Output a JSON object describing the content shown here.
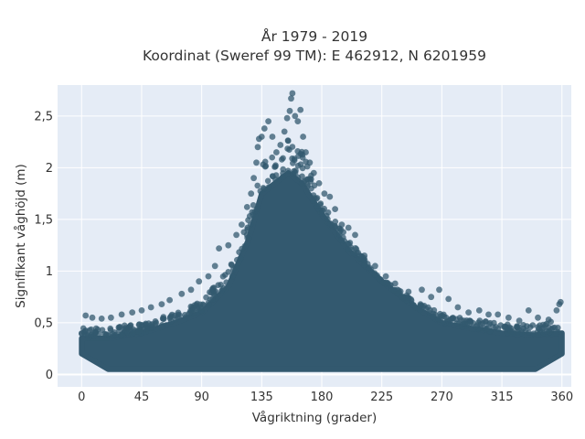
{
  "chart_data": {
    "type": "scatter",
    "title": "År 1979 - 2019",
    "subtitle": "Koordinat (Sweref 99 TM): E 462912, N 6201959",
    "xlabel": "Vågriktning (grader)",
    "ylabel": "Signifikant våghöjd (m)",
    "xlim": [
      -18,
      367
    ],
    "ylim": [
      -0.12,
      2.8
    ],
    "x_ticks": [
      0,
      45,
      90,
      135,
      180,
      225,
      270,
      315,
      360
    ],
    "x_tick_labels": [
      "0",
      "45",
      "90",
      "135",
      "180",
      "225",
      "270",
      "315",
      "360"
    ],
    "y_ticks": [
      0,
      0.5,
      1,
      1.5,
      2,
      2.5
    ],
    "y_tick_labels": [
      "0",
      "0,5",
      "1",
      "1,5",
      "2",
      "2,5"
    ],
    "grid": true,
    "colors": {
      "marker": "#33596f",
      "plot_bg": "#e5ecf6",
      "grid": "#ffffff"
    },
    "envelope": {
      "direction": [
        0,
        20,
        45,
        70,
        90,
        110,
        125,
        135,
        145,
        155,
        165,
        180,
        200,
        225,
        250,
        270,
        290,
        315,
        340,
        360
      ],
      "hs_dense_upper": [
        0.35,
        0.35,
        0.4,
        0.5,
        0.6,
        0.85,
        1.3,
        1.75,
        1.85,
        1.95,
        1.85,
        1.55,
        1.2,
        0.9,
        0.65,
        0.5,
        0.45,
        0.4,
        0.38,
        0.4
      ],
      "hs_max": [
        0.57,
        0.58,
        0.62,
        0.7,
        0.85,
        1.2,
        1.75,
        2.4,
        2.55,
        2.72,
        2.55,
        1.8,
        1.45,
        0.95,
        0.8,
        0.7,
        0.65,
        0.6,
        0.6,
        0.7
      ]
    },
    "points": [
      {
        "x": 3,
        "y": 0.57
      },
      {
        "x": 8,
        "y": 0.55
      },
      {
        "x": 15,
        "y": 0.54
      },
      {
        "x": 22,
        "y": 0.55
      },
      {
        "x": 30,
        "y": 0.58
      },
      {
        "x": 38,
        "y": 0.6
      },
      {
        "x": 45,
        "y": 0.62
      },
      {
        "x": 52,
        "y": 0.65
      },
      {
        "x": 60,
        "y": 0.68
      },
      {
        "x": 66,
        "y": 0.72
      },
      {
        "x": 75,
        "y": 0.78
      },
      {
        "x": 82,
        "y": 0.82
      },
      {
        "x": 88,
        "y": 0.9
      },
      {
        "x": 95,
        "y": 0.95
      },
      {
        "x": 100,
        "y": 1.05
      },
      {
        "x": 103,
        "y": 1.22
      },
      {
        "x": 110,
        "y": 1.25
      },
      {
        "x": 116,
        "y": 1.35
      },
      {
        "x": 120,
        "y": 1.45
      },
      {
        "x": 124,
        "y": 1.62
      },
      {
        "x": 127,
        "y": 1.75
      },
      {
        "x": 129,
        "y": 1.9
      },
      {
        "x": 131,
        "y": 2.05
      },
      {
        "x": 132,
        "y": 2.2
      },
      {
        "x": 133,
        "y": 2.28
      },
      {
        "x": 135,
        "y": 2.3
      },
      {
        "x": 137,
        "y": 2.38
      },
      {
        "x": 140,
        "y": 2.45
      },
      {
        "x": 143,
        "y": 2.3
      },
      {
        "x": 146,
        "y": 2.15
      },
      {
        "x": 149,
        "y": 2.22
      },
      {
        "x": 152,
        "y": 2.35
      },
      {
        "x": 154,
        "y": 2.48
      },
      {
        "x": 156,
        "y": 2.55
      },
      {
        "x": 157,
        "y": 2.67
      },
      {
        "x": 158,
        "y": 2.72
      },
      {
        "x": 160,
        "y": 2.5
      },
      {
        "x": 162,
        "y": 2.45
      },
      {
        "x": 164,
        "y": 2.56
      },
      {
        "x": 166,
        "y": 2.3
      },
      {
        "x": 168,
        "y": 2.15
      },
      {
        "x": 171,
        "y": 2.05
      },
      {
        "x": 174,
        "y": 1.95
      },
      {
        "x": 178,
        "y": 1.85
      },
      {
        "x": 182,
        "y": 1.75
      },
      {
        "x": 186,
        "y": 1.72
      },
      {
        "x": 190,
        "y": 1.6
      },
      {
        "x": 195,
        "y": 1.45
      },
      {
        "x": 200,
        "y": 1.42
      },
      {
        "x": 205,
        "y": 1.35
      },
      {
        "x": 212,
        "y": 1.15
      },
      {
        "x": 220,
        "y": 1.05
      },
      {
        "x": 228,
        "y": 0.95
      },
      {
        "x": 235,
        "y": 0.88
      },
      {
        "x": 245,
        "y": 0.8
      },
      {
        "x": 255,
        "y": 0.82
      },
      {
        "x": 262,
        "y": 0.75
      },
      {
        "x": 268,
        "y": 0.82
      },
      {
        "x": 275,
        "y": 0.73
      },
      {
        "x": 282,
        "y": 0.65
      },
      {
        "x": 290,
        "y": 0.6
      },
      {
        "x": 298,
        "y": 0.62
      },
      {
        "x": 305,
        "y": 0.58
      },
      {
        "x": 312,
        "y": 0.58
      },
      {
        "x": 320,
        "y": 0.55
      },
      {
        "x": 328,
        "y": 0.52
      },
      {
        "x": 335,
        "y": 0.62
      },
      {
        "x": 342,
        "y": 0.55
      },
      {
        "x": 350,
        "y": 0.53
      },
      {
        "x": 356,
        "y": 0.62
      },
      {
        "x": 358,
        "y": 0.68
      },
      {
        "x": 359,
        "y": 0.7
      }
    ]
  }
}
